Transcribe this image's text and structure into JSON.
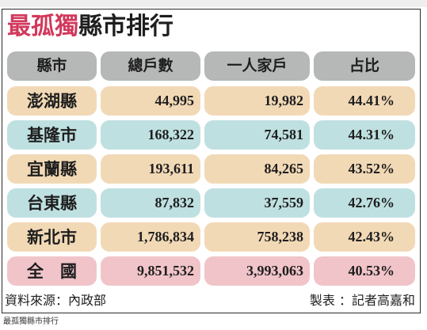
{
  "title": {
    "highlight": "最孤獨",
    "rest": "縣市排行"
  },
  "headers": [
    "縣市",
    "總戶數",
    "一人家戶",
    "占比"
  ],
  "rows": [
    {
      "name": "澎湖縣",
      "total": "44,995",
      "single": "19,982",
      "share": "44.41%"
    },
    {
      "name": "基隆市",
      "total": "168,322",
      "single": "74,581",
      "share": "44.31%"
    },
    {
      "name": "宜蘭縣",
      "total": "193,611",
      "single": "84,265",
      "share": "43.52%"
    },
    {
      "name": "台東縣",
      "total": "87,832",
      "single": "37,559",
      "share": "42.76%"
    },
    {
      "name": "新北市",
      "total": "1,786,834",
      "single": "758,238",
      "share": "42.43%"
    },
    {
      "name": "全　國",
      "total": "9,851,532",
      "single": "3,993,063",
      "share": "40.53%"
    }
  ],
  "source": "資料來源：內政部",
  "maker": "製表 ：記者高嘉和",
  "caption": "最孤獨縣市排行",
  "colors": {
    "header": "#b6b7b7",
    "beige": "#f2d9b6",
    "teal": "#bfe0e0",
    "pink": "#f1c4c9",
    "title_highlight": "#d2395c"
  }
}
